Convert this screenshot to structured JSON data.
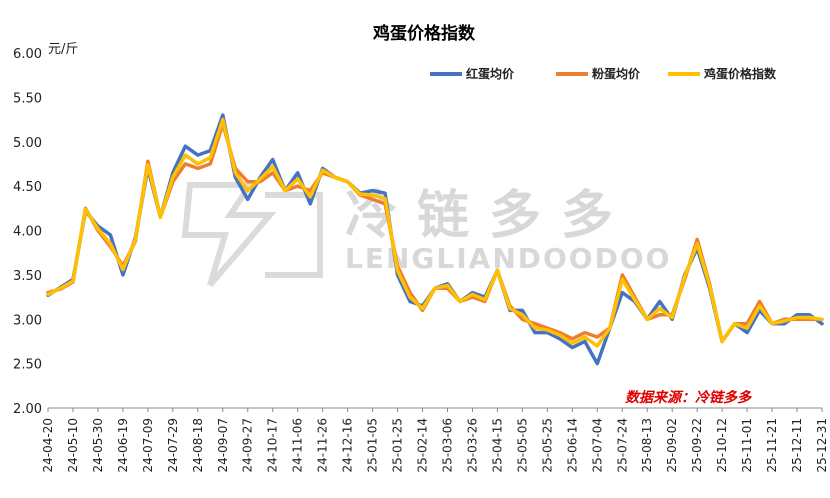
{
  "chart_data": {
    "type": "line",
    "title": "鸡蛋价格指数",
    "ylabel": "元/斤",
    "xlabel": "",
    "ylim": [
      2.0,
      6.0
    ],
    "yticks": [
      "2.00",
      "2.50",
      "3.00",
      "3.50",
      "4.00",
      "4.50",
      "5.00",
      "5.50",
      "6.00"
    ],
    "x_labels": [
      "24-04-20",
      "24-05-10",
      "24-05-30",
      "24-06-19",
      "24-07-09",
      "24-07-29",
      "24-08-18",
      "24-09-07",
      "24-09-27",
      "24-10-17",
      "24-11-06",
      "24-11-26",
      "24-12-16",
      "25-01-05",
      "25-01-25",
      "25-02-14",
      "25-03-06",
      "25-03-26",
      "25-04-15",
      "25-05-05",
      "25-05-25",
      "25-06-14",
      "25-07-04",
      "25-07-24",
      "25-08-13",
      "25-09-02",
      "25-09-22",
      "25-10-12",
      "25-11-01",
      "25-11-21",
      "25-12-11",
      "25-12-31"
    ],
    "x": [
      "24-04-20",
      "24-04-30",
      "24-05-10",
      "24-05-20",
      "24-05-30",
      "24-06-09",
      "24-06-19",
      "24-06-29",
      "24-07-09",
      "24-07-19",
      "24-07-29",
      "24-08-08",
      "24-08-18",
      "24-08-28",
      "24-09-07",
      "24-09-17",
      "24-09-27",
      "24-10-07",
      "24-10-17",
      "24-10-27",
      "24-11-06",
      "24-11-16",
      "24-11-26",
      "24-12-06",
      "24-12-16",
      "24-12-26",
      "25-01-05",
      "25-01-15",
      "25-01-25",
      "25-02-04",
      "25-02-14",
      "25-02-24",
      "25-03-06",
      "25-03-16",
      "25-03-26",
      "25-04-05",
      "25-04-15",
      "25-04-25",
      "25-05-05",
      "25-05-15",
      "25-05-25",
      "25-06-04",
      "25-06-14",
      "25-06-24",
      "25-07-04",
      "25-07-14",
      "25-07-24",
      "25-08-03",
      "25-08-13",
      "25-08-23",
      "25-09-02",
      "25-09-12",
      "25-09-22",
      "25-10-02",
      "25-10-12",
      "25-10-22",
      "25-11-01",
      "25-11-11",
      "25-11-21",
      "25-12-01",
      "25-12-11",
      "25-12-21",
      "25-12-31"
    ],
    "series": [
      {
        "name": "红蛋均价",
        "color": "#4472c4",
        "values": [
          3.27,
          3.36,
          3.45,
          4.22,
          4.05,
          3.95,
          3.5,
          3.92,
          4.7,
          4.15,
          4.65,
          4.95,
          4.85,
          4.9,
          5.3,
          4.6,
          4.35,
          4.6,
          4.8,
          4.45,
          4.65,
          4.3,
          4.7,
          4.6,
          4.55,
          4.42,
          4.45,
          4.42,
          3.5,
          3.2,
          3.15,
          3.35,
          3.4,
          3.2,
          3.3,
          3.25,
          3.55,
          3.1,
          3.1,
          2.85,
          2.85,
          2.78,
          2.68,
          2.75,
          2.5,
          2.9,
          3.3,
          3.2,
          3.0,
          3.2,
          3.0,
          3.5,
          3.8,
          3.35,
          2.75,
          2.95,
          2.85,
          3.1,
          2.95,
          2.95,
          3.05,
          3.05,
          2.95
        ]
      },
      {
        "name": "粉蛋均价",
        "color": "#ed7d31",
        "values": [
          3.3,
          3.34,
          3.42,
          4.25,
          4.0,
          3.82,
          3.6,
          3.88,
          4.78,
          4.15,
          4.55,
          4.75,
          4.7,
          4.75,
          5.2,
          4.7,
          4.55,
          4.55,
          4.65,
          4.45,
          4.5,
          4.45,
          4.65,
          4.6,
          4.55,
          4.4,
          4.35,
          4.3,
          3.6,
          3.3,
          3.1,
          3.35,
          3.35,
          3.2,
          3.25,
          3.2,
          3.55,
          3.15,
          3.0,
          2.95,
          2.9,
          2.85,
          2.78,
          2.85,
          2.8,
          2.9,
          3.5,
          3.25,
          3.0,
          3.05,
          3.05,
          3.45,
          3.9,
          3.4,
          2.75,
          2.95,
          2.95,
          3.2,
          2.95,
          3.0,
          3.0,
          3.0,
          3.0
        ]
      },
      {
        "name": "鸡蛋价格指数",
        "color": "#ffc000",
        "values": [
          3.28,
          3.35,
          3.43,
          4.24,
          4.02,
          3.85,
          3.56,
          3.9,
          4.74,
          4.15,
          4.6,
          4.85,
          4.75,
          4.82,
          5.25,
          4.65,
          4.45,
          4.58,
          4.72,
          4.45,
          4.58,
          4.38,
          4.68,
          4.6,
          4.55,
          4.41,
          4.4,
          4.36,
          3.55,
          3.25,
          3.12,
          3.35,
          3.38,
          3.2,
          3.28,
          3.22,
          3.55,
          3.12,
          3.05,
          2.9,
          2.88,
          2.82,
          2.73,
          2.8,
          2.7,
          2.9,
          3.45,
          3.22,
          3.0,
          3.12,
          3.02,
          3.48,
          3.85,
          3.38,
          2.75,
          2.95,
          2.9,
          3.15,
          2.95,
          2.98,
          3.02,
          3.02,
          3.0
        ]
      }
    ],
    "legend_position": "top-right",
    "grid": false
  },
  "annotations": {
    "source": "数据来源：冷链多多",
    "watermark_main": "冷链多多",
    "watermark_sub": "LENGLIANDOODOO"
  }
}
